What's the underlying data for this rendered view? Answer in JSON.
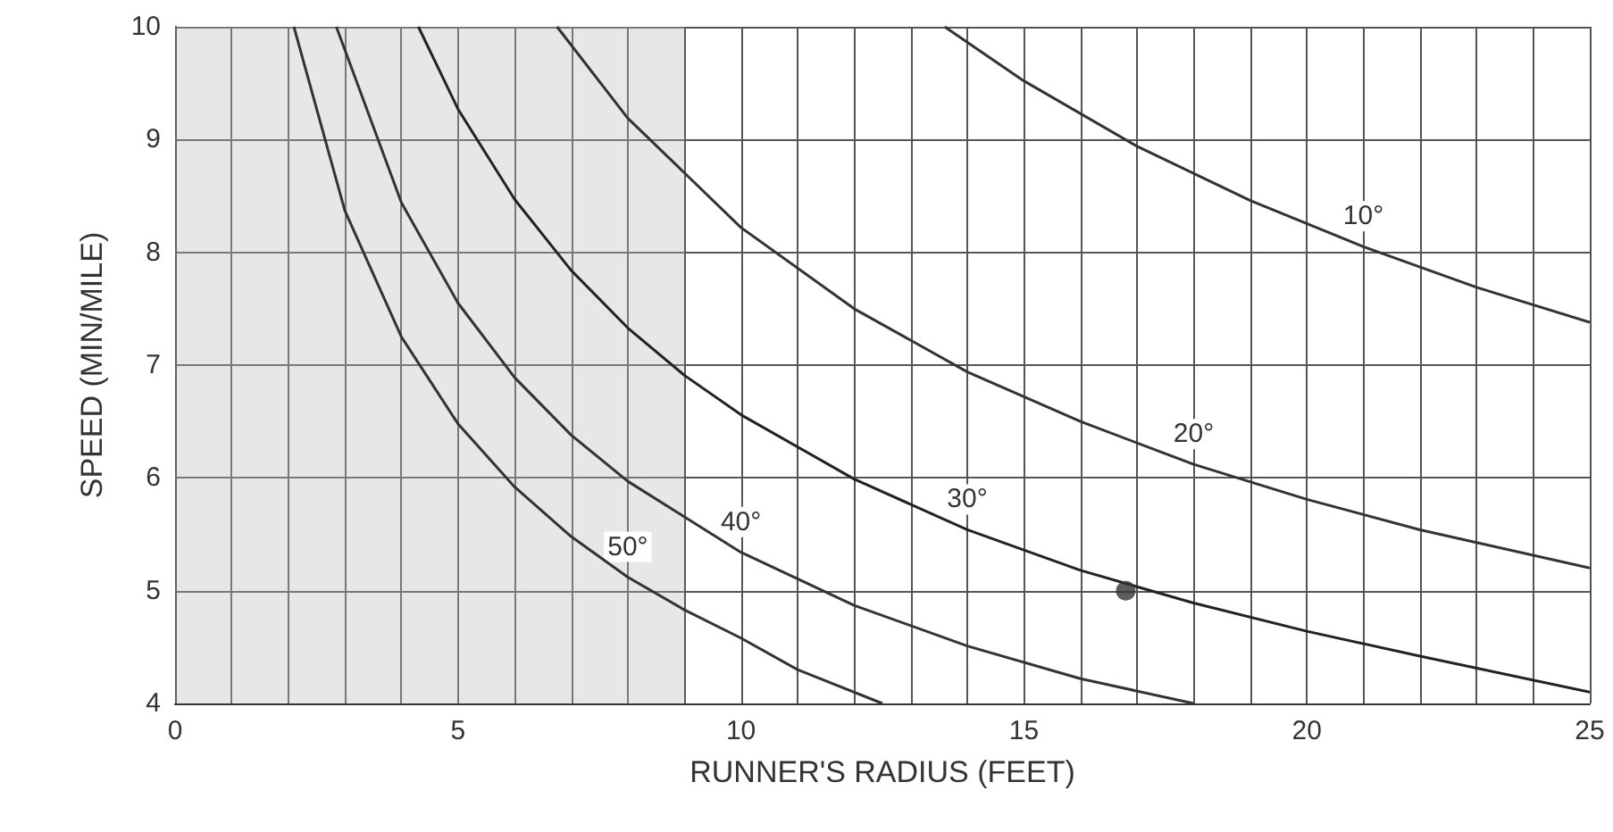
{
  "chart_data": {
    "type": "line",
    "xlabel": "RUNNER'S RADIUS (FEET)",
    "ylabel": "SPEED (MIN/MILE)",
    "xlim": [
      0,
      25
    ],
    "ylim": [
      4,
      10
    ],
    "xticks": [
      0,
      {
        "value": 1,
        "label": null
      },
      {
        "value": 2,
        "label": null
      },
      {
        "value": 3,
        "label": null
      },
      {
        "value": 4,
        "label": null
      },
      5,
      {
        "value": 6,
        "label": null
      },
      {
        "value": 7,
        "label": null
      },
      {
        "value": 8,
        "label": null
      },
      {
        "value": 9,
        "label": null
      },
      10,
      {
        "value": 11,
        "label": null
      },
      {
        "value": 12,
        "label": null
      },
      {
        "value": 13,
        "label": null
      },
      {
        "value": 14,
        "label": null
      },
      15,
      {
        "value": 16,
        "label": null
      },
      {
        "value": 17,
        "label": null
      },
      {
        "value": 18,
        "label": null
      },
      {
        "value": 19,
        "label": null
      },
      20,
      {
        "value": 21,
        "label": null
      },
      {
        "value": 22,
        "label": null
      },
      {
        "value": 23,
        "label": null
      },
      {
        "value": 24,
        "label": null
      },
      25
    ],
    "yticks": [
      4,
      5,
      6,
      7,
      8,
      9,
      10
    ],
    "grid": true,
    "legend": false,
    "marker": "none",
    "line_style": "solid",
    "bands": [
      {
        "axis": "x",
        "from": 0,
        "to": 9,
        "color": "#bbbbbb"
      }
    ],
    "series": [
      {
        "name": "10°",
        "color": "#333333",
        "x": [
          13.6,
          15,
          17,
          19,
          21,
          23,
          25
        ],
        "values": [
          10,
          9.52,
          8.94,
          8.46,
          8.05,
          7.69,
          7.38
        ]
      },
      {
        "name": "20°",
        "color": "#333333",
        "x": [
          6.75,
          8,
          10,
          12,
          14,
          16,
          18,
          20,
          22,
          25
        ],
        "values": [
          10,
          9.19,
          8.22,
          7.5,
          6.94,
          6.5,
          6.12,
          5.81,
          5.54,
          5.2
        ]
      },
      {
        "name": "30°",
        "color": "#222222",
        "x": [
          4.3,
          5,
          6,
          7,
          8,
          9,
          10,
          12,
          14,
          16,
          18,
          20,
          22,
          25
        ],
        "values": [
          10,
          9.27,
          8.47,
          7.84,
          7.33,
          6.91,
          6.56,
          5.99,
          5.54,
          5.18,
          4.89,
          4.64,
          4.42,
          4.1
        ]
      },
      {
        "name": "40°",
        "color": "#333333",
        "x": [
          2.85,
          4,
          5,
          6,
          7,
          8,
          10,
          12,
          14,
          16,
          18
        ],
        "values": [
          10,
          8.44,
          7.55,
          6.89,
          6.38,
          5.97,
          5.34,
          4.87,
          4.51,
          4.22,
          4
        ]
      },
      {
        "name": "50°",
        "color": "#333333",
        "x": [
          2.1,
          3,
          4,
          5,
          6,
          7,
          8,
          9,
          10,
          11,
          12.5
        ],
        "values": [
          10,
          8.37,
          7.25,
          6.48,
          5.92,
          5.48,
          5.12,
          4.83,
          4.58,
          4.3,
          4
        ]
      },
      {
        "type": "scatter",
        "marker": "circle",
        "color": "#333333",
        "x": [
          16.8
        ],
        "values": [
          5
        ]
      }
    ]
  }
}
